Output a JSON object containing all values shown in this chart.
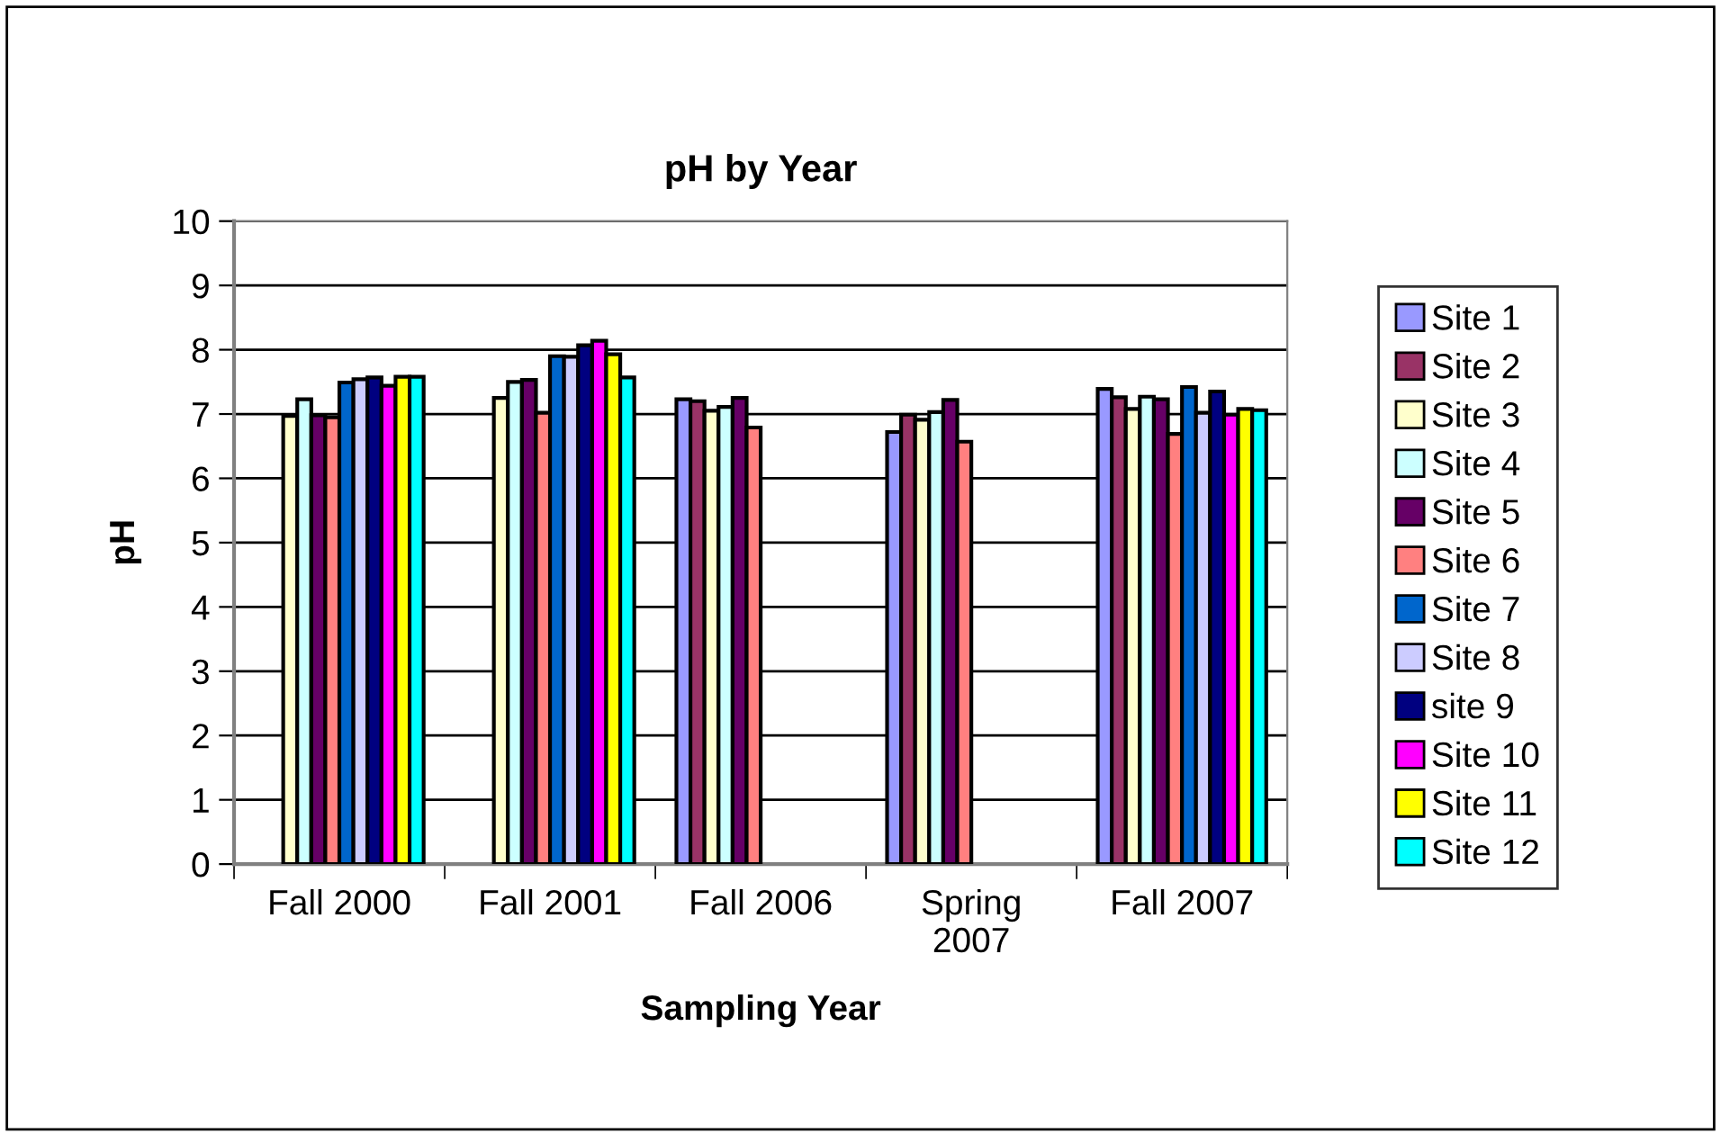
{
  "chart_data": {
    "type": "bar",
    "title": "pH by Year",
    "xlabel": "Sampling Year",
    "ylabel": "pH",
    "categories": [
      "Fall 2000",
      "Fall 2001",
      "Fall 2006",
      "Spring 2007",
      "Fall 2007"
    ],
    "series": [
      {
        "name": "Site 1",
        "color": "#9999ff",
        "values": [
          null,
          null,
          7.23,
          6.72,
          7.39
        ]
      },
      {
        "name": "Site 2",
        "color": "#993366",
        "values": [
          null,
          null,
          7.2,
          6.99,
          7.26
        ]
      },
      {
        "name": "Site 3",
        "color": "#ffffcc",
        "values": [
          6.97,
          7.25,
          7.05,
          6.91,
          7.08
        ]
      },
      {
        "name": "Site 4",
        "color": "#ccffff",
        "values": [
          7.23,
          7.5,
          7.11,
          7.03,
          7.27
        ]
      },
      {
        "name": "Site 5",
        "color": "#660066",
        "values": [
          6.98,
          7.53,
          7.25,
          7.22,
          7.23
        ]
      },
      {
        "name": "Site 6",
        "color": "#ff8080",
        "values": [
          6.95,
          7.02,
          6.79,
          6.57,
          6.69
        ]
      },
      {
        "name": "Site 7",
        "color": "#0066cc",
        "values": [
          7.49,
          7.9,
          null,
          null,
          7.42
        ]
      },
      {
        "name": "Site 8",
        "color": "#ccccff",
        "values": [
          7.54,
          7.89,
          null,
          null,
          7.02
        ]
      },
      {
        "name": "site 9",
        "color": "#000080",
        "values": [
          7.57,
          8.07,
          null,
          null,
          7.35
        ]
      },
      {
        "name": "Site 10",
        "color": "#ff00ff",
        "values": [
          7.44,
          8.14,
          null,
          null,
          6.99
        ]
      },
      {
        "name": "Site 11",
        "color": "#ffff00",
        "values": [
          7.58,
          7.93,
          null,
          null,
          7.08
        ]
      },
      {
        "name": "Site 12",
        "color": "#00ffff",
        "values": [
          7.58,
          7.57,
          null,
          null,
          7.06
        ]
      }
    ],
    "ylim": [
      0,
      10
    ],
    "yticks": [
      0,
      1,
      2,
      3,
      4,
      5,
      6,
      7,
      8,
      9,
      10
    ],
    "grid": "y",
    "legend": "right"
  }
}
